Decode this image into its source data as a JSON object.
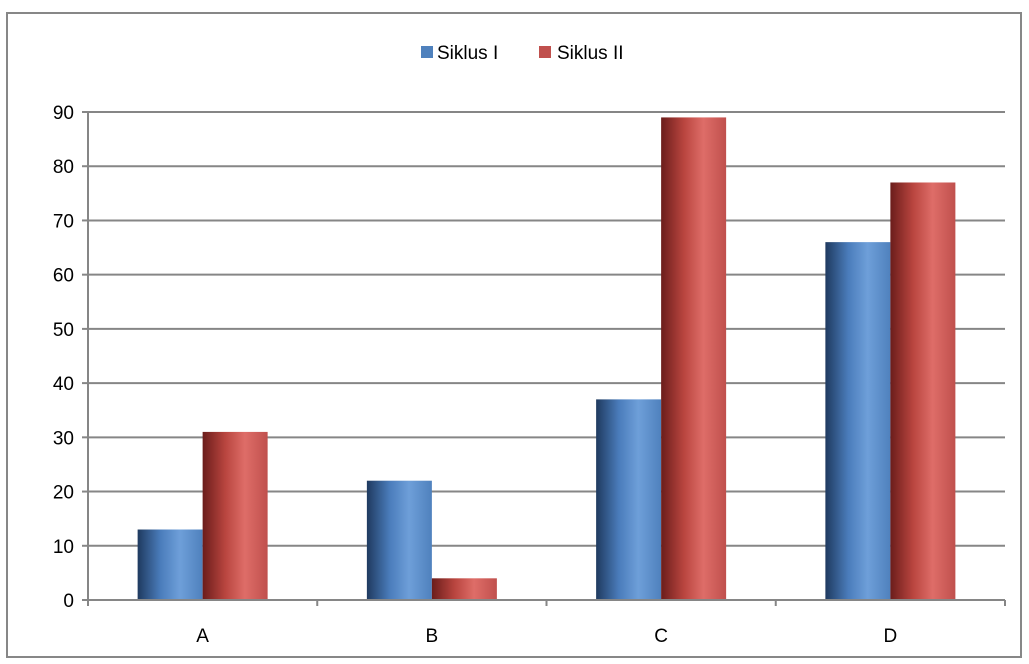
{
  "chart_data": {
    "type": "bar",
    "title": "",
    "xlabel": "",
    "ylabel": "",
    "categories": [
      "A",
      "B",
      "C",
      "D"
    ],
    "series": [
      {
        "name": "Siklus I",
        "values": [
          13,
          22,
          37,
          66
        ]
      },
      {
        "name": "Siklus II",
        "values": [
          31,
          4,
          89,
          77
        ]
      }
    ],
    "ylim": [
      0,
      90
    ],
    "yticks": [
      0,
      10,
      20,
      30,
      40,
      50,
      60,
      70,
      80,
      90
    ],
    "grid": true,
    "legend": "top-center"
  },
  "colors": {
    "series_1": "#4f81bd",
    "series_2": "#c0504d",
    "grid": "#868686",
    "frame": "#878787"
  }
}
